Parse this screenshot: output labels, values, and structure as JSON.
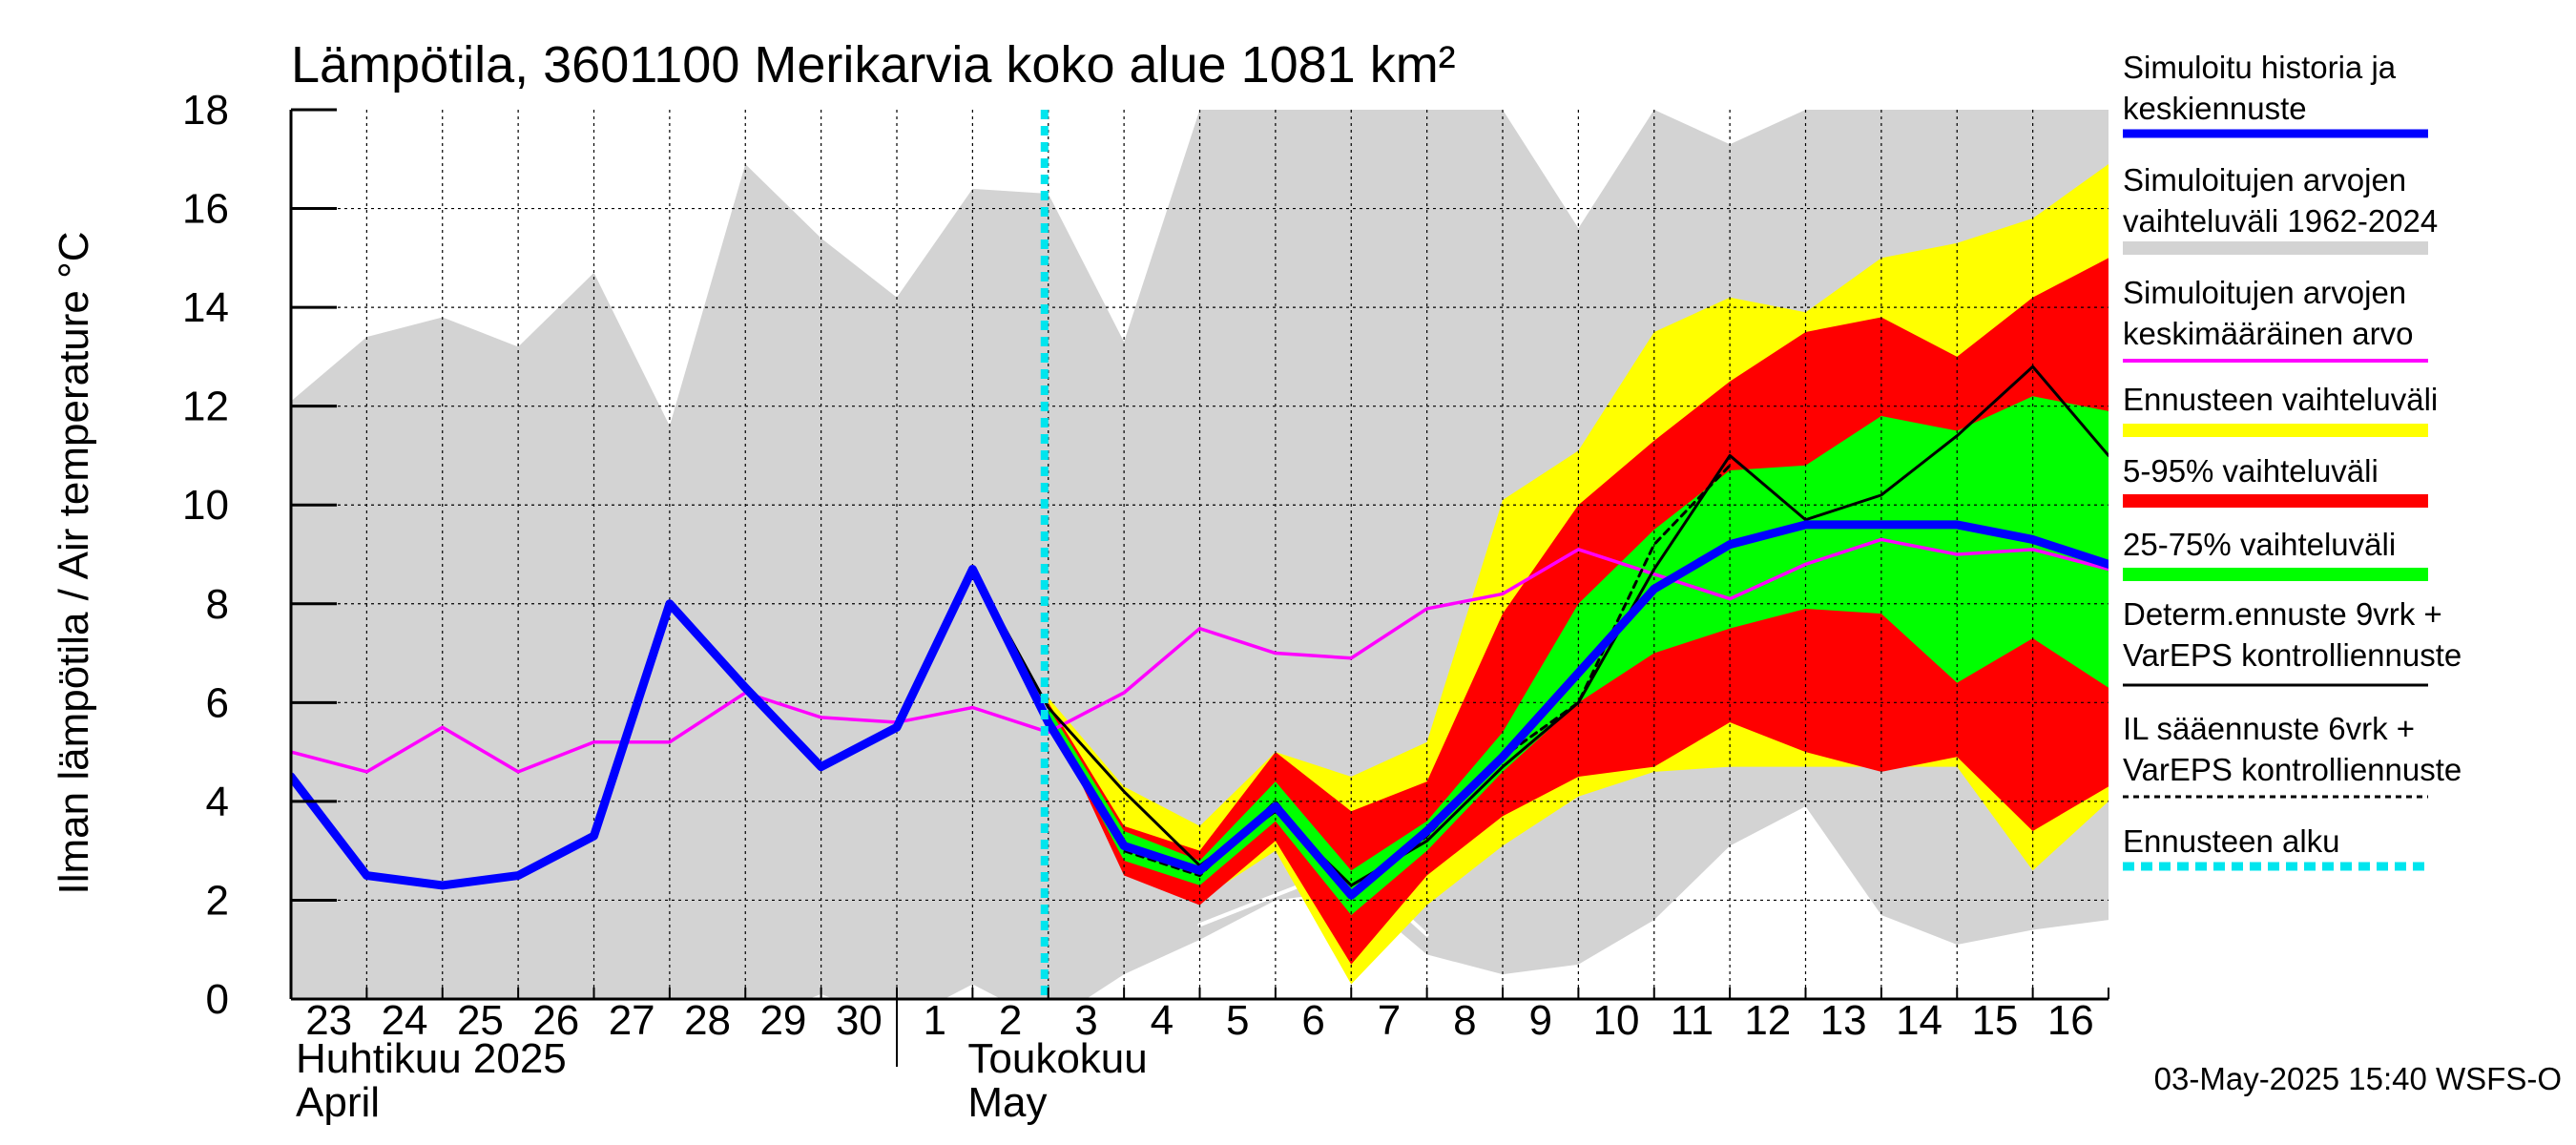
{
  "chart_data": {
    "type": "line",
    "title": "Lämpötila, 3601100 Merikarvia koko alue 1081 km²",
    "ylabel": "Ilman lämpötila / Air temperature   °C",
    "ylim": [
      0,
      18
    ],
    "yticks": [
      "0",
      "2",
      "4",
      "6",
      "8",
      "10",
      "12",
      "14",
      "16",
      "18"
    ],
    "grid": true,
    "legend_position": "right",
    "x_labels": [
      "23",
      "24",
      "25",
      "26",
      "27",
      "28",
      "29",
      "30",
      "1",
      "2",
      "3",
      "4",
      "5",
      "6",
      "7",
      "8",
      "9",
      "10",
      "11",
      "12",
      "13",
      "14",
      "15",
      "16"
    ],
    "month_labels": [
      {
        "fi": "Huhtikuu  2025",
        "en": "April"
      },
      {
        "fi": "Toukokuu",
        "en": "May"
      }
    ],
    "forecast_start": 9.95,
    "series": {
      "range_1962_2024": {
        "name": "Simuloitujen arvojen vaihteluväli 1962-2024",
        "color": "#d3d3d3",
        "x": [
          0,
          1,
          2,
          3,
          4,
          5,
          6,
          7,
          8,
          9,
          10,
          11,
          12,
          13,
          14,
          15,
          16,
          17,
          18,
          19,
          20,
          21,
          22,
          23,
          24
        ],
        "upper": [
          12.1,
          13.4,
          13.8,
          13.2,
          14.7,
          11.6,
          16.9,
          15.4,
          14.2,
          16.4,
          16.3,
          13.3,
          18,
          18,
          18,
          18,
          18,
          15.6,
          18,
          17.3,
          18,
          18,
          18,
          18,
          18
        ],
        "lower": [
          -0.5,
          -0.5,
          -0.5,
          -0.5,
          -0.5,
          -0.5,
          -0.5,
          0.1,
          -0.5,
          0.3,
          -0.5,
          0.5,
          1.2,
          2,
          2.2,
          0.9,
          0.5,
          0.7,
          1.6,
          3.1,
          3.9,
          1.7,
          1.1,
          1.4,
          1.6
        ]
      },
      "ensemble_range": {
        "name": "Ennusteen vaihteluväli",
        "color": "#ffff00",
        "x": [
          10,
          11,
          12,
          13,
          14,
          15,
          16,
          17,
          18,
          19,
          20,
          21,
          22,
          23,
          24
        ],
        "upper": [
          6.1,
          4.3,
          3.5,
          5,
          4.5,
          5.2,
          10.1,
          11.1,
          13.5,
          14.2,
          13.9,
          15,
          15.3,
          15.8,
          16.9
        ],
        "lower": [
          5.8,
          2.6,
          2,
          3,
          0.3,
          1.9,
          3.1,
          4.1,
          4.6,
          4.7,
          4.7,
          4.7,
          4.7,
          2.6,
          4
        ]
      },
      "range_5_95": {
        "name": "5-95% vaihteluväli",
        "color": "#ff0000",
        "x": [
          10,
          11,
          12,
          13,
          14,
          15,
          16,
          17,
          18,
          19,
          20,
          21,
          22,
          23,
          24
        ],
        "upper": [
          6,
          3.5,
          3,
          5,
          3.8,
          4.4,
          7.8,
          10,
          11.3,
          12.5,
          13.5,
          13.8,
          13,
          14.2,
          15
        ],
        "lower": [
          5.8,
          2.5,
          1.9,
          3.2,
          0.7,
          2.5,
          3.7,
          4.5,
          4.7,
          5.6,
          5,
          4.6,
          4.9,
          3.4,
          4.3
        ]
      },
      "range_25_75": {
        "name": "25-75% vaihteluväli",
        "color": "#00ff00",
        "x": [
          10,
          11,
          12,
          13,
          14,
          15,
          16,
          17,
          18,
          19,
          20,
          21,
          22,
          23,
          24
        ],
        "upper": [
          5.9,
          3.4,
          2.8,
          4.4,
          2.6,
          3.6,
          5.4,
          8,
          9.5,
          10.7,
          10.8,
          11.8,
          11.5,
          12.2,
          11.9
        ],
        "lower": [
          5.7,
          2.8,
          2.3,
          3.6,
          1.7,
          3,
          4.6,
          6,
          7,
          7.5,
          7.9,
          7.8,
          6.4,
          7.3,
          6.3
        ]
      },
      "mean_1962_2024": {
        "name": "Simuloitujen arvojen keskimääräinen arvo",
        "color": "#ff00ff",
        "x": [
          0,
          1,
          2,
          3,
          4,
          5,
          6,
          7,
          8,
          9,
          10,
          11,
          12,
          13,
          14,
          15,
          16,
          17,
          18,
          19,
          20,
          21,
          22,
          23,
          24
        ],
        "y": [
          5,
          4.6,
          5.5,
          4.6,
          5.2,
          5.2,
          6.2,
          5.7,
          5.6,
          5.9,
          5.4,
          6.2,
          7.5,
          7,
          6.9,
          7.9,
          8.2,
          9.1,
          8.6,
          8.1,
          8.8,
          9.3,
          9,
          9.1,
          8.7
        ]
      },
      "simulated_history_and_median_forecast": {
        "name": "Simuloitu historia ja keskiennuste",
        "color": "#0000ff",
        "x": [
          0,
          1,
          2,
          3,
          4,
          5,
          6,
          7,
          8,
          9,
          10,
          11,
          12,
          13,
          14,
          15,
          16,
          17,
          18,
          19,
          20,
          21,
          22,
          23,
          24
        ],
        "y": [
          4.5,
          2.5,
          2.3,
          2.5,
          3.3,
          8,
          6.3,
          4.7,
          5.5,
          8.7,
          5.6,
          3.1,
          2.6,
          3.9,
          2.1,
          3.4,
          4.9,
          6.6,
          8.3,
          9.2,
          9.6,
          9.6,
          9.6,
          9.3,
          8.8
        ]
      },
      "deterministic_forecast": {
        "name": "Determ.ennuste 9vrk + VarEPS kontrolliennuste",
        "color": "#000000",
        "x": [
          8,
          9,
          10,
          11,
          12,
          13,
          14,
          15,
          16,
          17,
          18,
          19,
          20,
          21,
          22,
          23,
          24
        ],
        "y": [
          5.5,
          8.7,
          5.9,
          4.2,
          2.7,
          3.8,
          2.3,
          3.2,
          4.7,
          6,
          8.7,
          11,
          9.7,
          10.2,
          11.4,
          12.8,
          11
        ]
      },
      "il_weather_forecast": {
        "name": "IL sääennuste 6vrk  +  VarEPS kontrolliennuste",
        "color": "#000000",
        "x": [
          8,
          9,
          10,
          11,
          12,
          13,
          14,
          15,
          16,
          17,
          18,
          19
        ],
        "y": [
          5.5,
          8.7,
          5.7,
          3,
          2.5,
          4,
          2.1,
          3.3,
          4.9,
          6,
          9.2,
          10.8
        ]
      },
      "white_line": {
        "x": [
          12,
          13,
          14,
          15
        ],
        "y": [
          1.5,
          2.1,
          2.7,
          1.3
        ]
      }
    }
  },
  "legend": [
    {
      "lines": [
        "Simuloitu historia ja",
        "keskiennuste"
      ],
      "color": "#0000ff",
      "style": "thick"
    },
    {
      "lines": [
        "Simuloitujen arvojen",
        "vaihteluväli 1962-2024"
      ],
      "color": "#d3d3d3",
      "style": "band"
    },
    {
      "lines": [
        "Simuloitujen arvojen",
        "keskimääräinen arvo"
      ],
      "color": "#ff00ff",
      "style": "thin"
    },
    {
      "lines": [
        "Ennusteen vaihteluväli"
      ],
      "color": "#ffff00",
      "style": "band"
    },
    {
      "lines": [
        "5-95% vaihteluväli"
      ],
      "color": "#ff0000",
      "style": "band"
    },
    {
      "lines": [
        "25-75% vaihteluväli"
      ],
      "color": "#00ff00",
      "style": "band"
    },
    {
      "lines": [
        "Determ.ennuste 9vrk +",
        "VarEPS kontrolliennuste"
      ],
      "color": "#000000",
      "style": "line"
    },
    {
      "lines": [
        "IL sääennuste 6vrk  +",
        "  VarEPS kontrolliennuste"
      ],
      "color": "#000000",
      "style": "dashed"
    },
    {
      "lines": [
        "Ennusteen alku"
      ],
      "color": "#00e5ee",
      "style": "dotted"
    }
  ],
  "footer": "03-May-2025 15:40 WSFS-O"
}
